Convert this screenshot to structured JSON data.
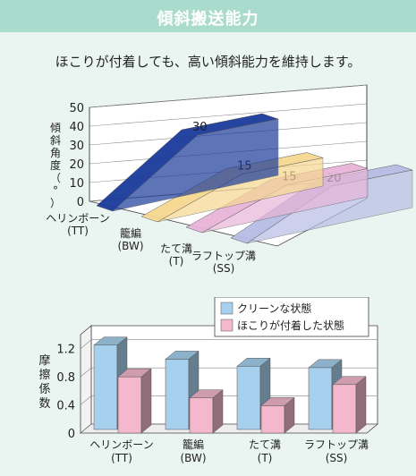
{
  "header": {
    "title": "傾斜搬送能力"
  },
  "lead_text": "ほこりが付着しても、高い傾斜能力を維持します。",
  "colors": {
    "title_bar": "#a9dccd",
    "background": "#eaf5f1",
    "clean": "#a7d0ee",
    "dusty": "#f4b8cc",
    "ribbon_tt": "#1a3a9a",
    "ribbon_bw": "#f6d890",
    "ribbon_t": "#e7b4d8",
    "ribbon_ss": "#b7bde4"
  },
  "chart_data": [
    {
      "type": "area",
      "ylabel_chars": [
        "傾",
        "斜",
        "角",
        "度",
        "（",
        "°",
        "）"
      ],
      "yticks": [
        "0",
        "10",
        "20",
        "30",
        "40",
        "50"
      ],
      "ylim": [
        0,
        50
      ],
      "categories": [
        {
          "name": "ヘリンボーン",
          "code": "(TT)"
        },
        {
          "name": "籠編",
          "code": "(BW)"
        },
        {
          "name": "たて溝",
          "code": "(T)"
        },
        {
          "name": "ラフトップ溝",
          "code": "(SS)"
        }
      ],
      "values": [
        30,
        15,
        15,
        20
      ],
      "value_labels": [
        "30",
        "15",
        "15",
        "20"
      ],
      "grid": true
    },
    {
      "type": "bar",
      "ylabel_chars": [
        "摩",
        "擦",
        "係",
        "数"
      ],
      "yticks": [
        "0",
        "0.4",
        "0.8",
        "1.2"
      ],
      "ylim": [
        0,
        1.4
      ],
      "categories": [
        {
          "name": "ヘリンボーン",
          "code": "(TT)"
        },
        {
          "name": "籠編",
          "code": "(BW)"
        },
        {
          "name": "たて溝",
          "code": "(T)"
        },
        {
          "name": "ラフトップ溝",
          "code": "(SS)"
        }
      ],
      "series": [
        {
          "name": "クリーンな状態",
          "values": [
            1.2,
            1.0,
            0.9,
            0.88
          ]
        },
        {
          "name": "ほこりが付着した状態",
          "values": [
            0.8,
            0.5,
            0.39,
            0.69
          ]
        }
      ],
      "legend": "top-right",
      "grid": true
    }
  ]
}
